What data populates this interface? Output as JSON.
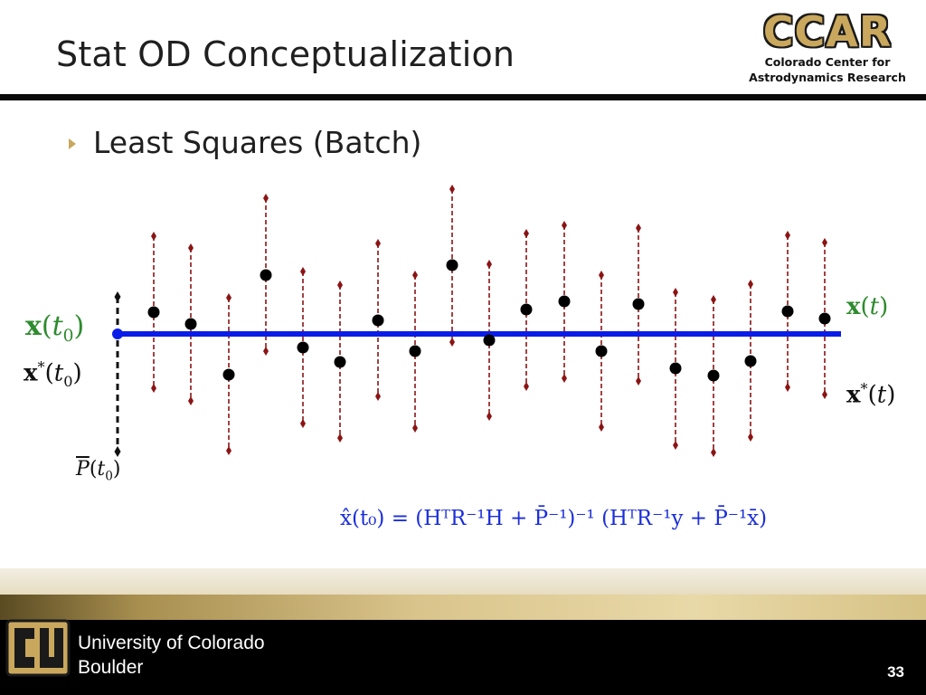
{
  "slide": {
    "title": "Stat OD Conceptualization",
    "bullet": "Least Squares (Batch)",
    "page_number": "33"
  },
  "ccar": {
    "logo_text": "CCAR",
    "line1": "Colorado Center for",
    "line2": "Astrodynamics Research"
  },
  "footer": {
    "university_line1": "University of Colorado",
    "university_line2": "Boulder"
  },
  "diagram_labels": {
    "x_t0": {
      "symbol": "x",
      "arg": "t",
      "sub": "0"
    },
    "xstar_t0": {
      "symbol": "x",
      "sup": "*",
      "arg": "t",
      "sub": "0"
    },
    "pbar_t0": {
      "symbol": "P",
      "arg": "t",
      "sub": "0"
    },
    "x_t": {
      "symbol": "x",
      "arg": "t"
    },
    "xstar_t": {
      "symbol": "x",
      "sup": "*",
      "arg": "t"
    }
  },
  "equation": "x̂(t₀) = (HᵀR⁻¹H + P̄⁻¹)⁻¹ (HᵀR⁻¹y + P̄⁻¹x̄)",
  "colors": {
    "estimate_line": "#0a1de8",
    "observation_point": "#000000",
    "error_bar": "#8b1414",
    "accent_gold": "#c9a75d",
    "green_label": "#2e8b2e",
    "equation_blue": "#1c2fd9"
  }
}
